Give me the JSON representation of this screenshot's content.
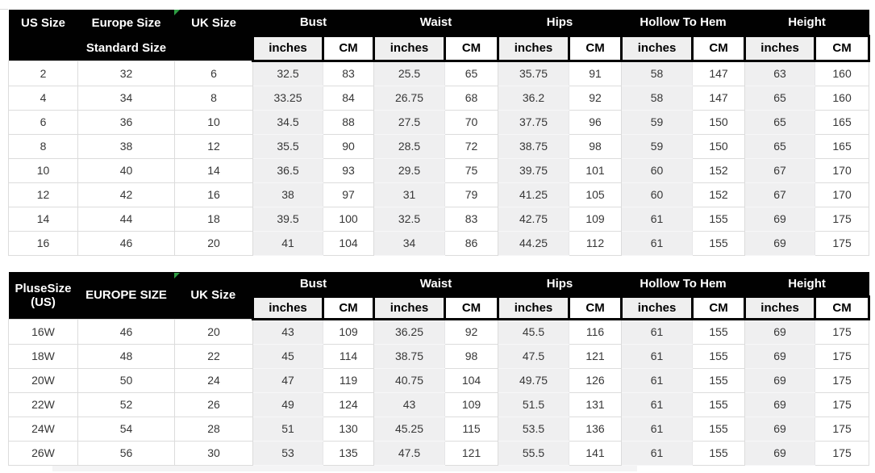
{
  "colors": {
    "header_bg": "#010101",
    "header_text": "#ffffff",
    "inches_column_bg": "#efeff0",
    "cm_column_bg": "#ffffff",
    "grid_border": "#dcdcdc",
    "data_text": "#373737",
    "corner_marker_green": "#2f9e44"
  },
  "chart_data": [
    {
      "type": "table",
      "title": "Standard Size",
      "header": {
        "col1": "US Size",
        "col2": "Europe Size",
        "col2_sub": "Standard Size",
        "col3": "UK Size",
        "groups": [
          "Bust",
          "Waist",
          "Hips",
          "Hollow To Hem",
          "Height"
        ],
        "unit_inches": "inches",
        "unit_cm": "CM"
      },
      "columns": [
        "US Size",
        "Europe Size",
        "UK Size",
        "Bust inches",
        "Bust CM",
        "Waist inches",
        "Waist CM",
        "Hips inches",
        "Hips CM",
        "Hollow To Hem inches",
        "Hollow To Hem CM",
        "Height inches",
        "Height CM"
      ],
      "rows": [
        [
          "2",
          "32",
          "6",
          "32.5",
          "83",
          "25.5",
          "65",
          "35.75",
          "91",
          "58",
          "147",
          "63",
          "160"
        ],
        [
          "4",
          "34",
          "8",
          "33.25",
          "84",
          "26.75",
          "68",
          "36.2",
          "92",
          "58",
          "147",
          "65",
          "160"
        ],
        [
          "6",
          "36",
          "10",
          "34.5",
          "88",
          "27.5",
          "70",
          "37.75",
          "96",
          "59",
          "150",
          "65",
          "165"
        ],
        [
          "8",
          "38",
          "12",
          "35.5",
          "90",
          "28.5",
          "72",
          "38.75",
          "98",
          "59",
          "150",
          "65",
          "165"
        ],
        [
          "10",
          "40",
          "14",
          "36.5",
          "93",
          "29.5",
          "75",
          "39.75",
          "101",
          "60",
          "152",
          "67",
          "170"
        ],
        [
          "12",
          "42",
          "16",
          "38",
          "97",
          "31",
          "79",
          "41.25",
          "105",
          "60",
          "152",
          "67",
          "170"
        ],
        [
          "14",
          "44",
          "18",
          "39.5",
          "100",
          "32.5",
          "83",
          "42.75",
          "109",
          "61",
          "155",
          "69",
          "175"
        ],
        [
          "16",
          "46",
          "20",
          "41",
          "104",
          "34",
          "86",
          "44.25",
          "112",
          "61",
          "155",
          "69",
          "175"
        ]
      ]
    },
    {
      "type": "table",
      "title": "Plus Size",
      "header": {
        "col1_line1": "PluseSize",
        "col1_line2": "(US)",
        "col2": "EUROPE SIZE",
        "col3": "UK Size",
        "groups": [
          "Bust",
          "Waist",
          "Hips",
          "Hollow To Hem",
          "Height"
        ],
        "unit_inches": "inches",
        "unit_cm": "CM"
      },
      "columns": [
        "PluseSize (US)",
        "EUROPE SIZE",
        "UK Size",
        "Bust inches",
        "Bust CM",
        "Waist inches",
        "Waist CM",
        "Hips inches",
        "Hips CM",
        "Hollow To Hem inches",
        "Hollow To Hem CM",
        "Height inches",
        "Height CM"
      ],
      "rows": [
        [
          "16W",
          "46",
          "20",
          "43",
          "109",
          "36.25",
          "92",
          "45.5",
          "116",
          "61",
          "155",
          "69",
          "175"
        ],
        [
          "18W",
          "48",
          "22",
          "45",
          "114",
          "38.75",
          "98",
          "47.5",
          "121",
          "61",
          "155",
          "69",
          "175"
        ],
        [
          "20W",
          "50",
          "24",
          "47",
          "119",
          "40.75",
          "104",
          "49.75",
          "126",
          "61",
          "155",
          "69",
          "175"
        ],
        [
          "22W",
          "52",
          "26",
          "49",
          "124",
          "43",
          "109",
          "51.5",
          "131",
          "61",
          "155",
          "69",
          "175"
        ],
        [
          "24W",
          "54",
          "28",
          "51",
          "130",
          "45.25",
          "115",
          "53.5",
          "136",
          "61",
          "155",
          "69",
          "175"
        ],
        [
          "26W",
          "56",
          "30",
          "53",
          "135",
          "47.5",
          "121",
          "55.5",
          "141",
          "61",
          "155",
          "69",
          "175"
        ]
      ]
    }
  ]
}
